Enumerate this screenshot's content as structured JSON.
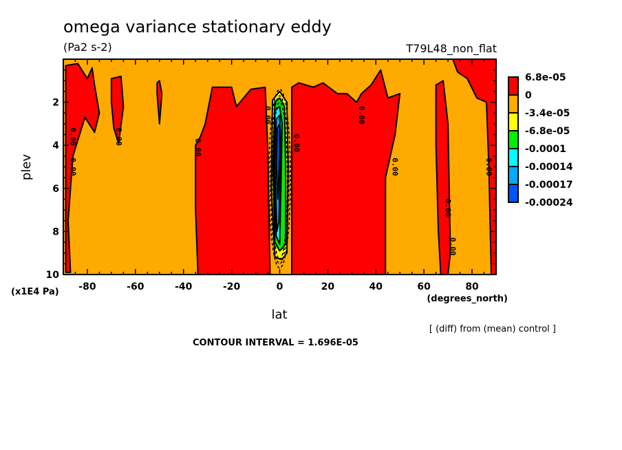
{
  "chart_data": {
    "type": "heatmap",
    "subtype": "filled-contour",
    "title": "omega variance stationary eddy",
    "units": "(Pa2 s-2)",
    "run_label": "T79L48_non_flat",
    "xlabel": "lat",
    "x_units": "(degrees_north)",
    "ylabel": "plev",
    "y_units": "(x1E4 Pa)",
    "xlim": [
      -90,
      90
    ],
    "ylim": [
      10,
      0
    ],
    "x_ticks": [
      -80,
      -60,
      -40,
      -20,
      0,
      20,
      40,
      60,
      80
    ],
    "x_tick_labels": [
      "-80",
      "-60",
      "-40",
      "-20",
      "0",
      "20",
      "40",
      "60",
      "80"
    ],
    "y_ticks": [
      2,
      4,
      6,
      8,
      10
    ],
    "y_tick_labels": [
      "2",
      "4",
      "6",
      "8",
      "10"
    ],
    "contour_interval_text": "CONTOUR INTERVAL = 1.696E-05",
    "contour_interval": 1.696e-05,
    "comparison_note": "[ (diff) from (mean) control ]",
    "contour_label": "0.00",
    "colorbar": {
      "labels": [
        "6.8e-05",
        "0",
        "-3.4e-05",
        "-6.8e-05",
        "-0.0001",
        "-0.00014",
        "-0.00017",
        "-0.00024"
      ],
      "colors": [
        "#ff0000",
        "#ffaa00",
        "#ffff00",
        "#00ee00",
        "#00ffff",
        "#00aaff",
        "#0055ff"
      ]
    },
    "background_color": "#ffaa00",
    "regions": [
      {
        "name": "sh-high-lat-positive",
        "level_color": "#ff0000",
        "points": [
          [
            -89,
            0.3
          ],
          [
            -84,
            0.2
          ],
          [
            -80,
            0.9
          ],
          [
            -78,
            0.4
          ],
          [
            -77,
            1.2
          ],
          [
            -75,
            2.5
          ],
          [
            -77,
            3.4
          ],
          [
            -81,
            2.7
          ],
          [
            -86,
            4.5
          ],
          [
            -88,
            7.5
          ],
          [
            -87,
            9.9
          ],
          [
            -89,
            9.9
          ]
        ]
      },
      {
        "name": "sh-lat-68-positive",
        "level_color": "#ff0000",
        "points": [
          [
            -70,
            0.9
          ],
          [
            -66,
            0.8
          ],
          [
            -65,
            2.2
          ],
          [
            -67,
            3.9
          ],
          [
            -69,
            3.2
          ],
          [
            -70,
            2.0
          ]
        ]
      },
      {
        "name": "sh-lat-50-streak",
        "level_color": "#ff0000",
        "points": [
          [
            -51,
            1.1
          ],
          [
            -50,
            1.0
          ],
          [
            -49,
            1.6
          ],
          [
            -50,
            3.0
          ],
          [
            -51,
            1.6
          ]
        ]
      },
      {
        "name": "sh-subtropics-positive",
        "level_color": "#ff0000",
        "points": [
          [
            -35,
            4.0
          ],
          [
            -33,
            3.6
          ],
          [
            -31,
            3.0
          ],
          [
            -28,
            1.3
          ],
          [
            -20,
            1.3
          ],
          [
            -18,
            2.2
          ],
          [
            -12,
            1.4
          ],
          [
            -6,
            1.3
          ],
          [
            -5,
            4.0
          ],
          [
            -4,
            10
          ],
          [
            -34,
            10
          ],
          [
            -35,
            7
          ]
        ]
      },
      {
        "name": "nh-subtropics-positive",
        "level_color": "#ff0000",
        "points": [
          [
            5,
            1.3
          ],
          [
            8,
            1.1
          ],
          [
            14,
            1.3
          ],
          [
            18,
            1.1
          ],
          [
            24,
            1.6
          ],
          [
            28,
            1.6
          ],
          [
            32,
            2.0
          ],
          [
            34,
            1.6
          ],
          [
            38,
            1.2
          ],
          [
            42,
            0.5
          ],
          [
            45,
            1.8
          ],
          [
            50,
            1.6
          ],
          [
            48,
            3.5
          ],
          [
            44,
            5.5
          ],
          [
            44,
            10
          ],
          [
            5,
            10
          ]
        ]
      },
      {
        "name": "nh-lat-70-positive",
        "level_color": "#ff0000",
        "points": [
          [
            65,
            1.2
          ],
          [
            68,
            1.0
          ],
          [
            70,
            3.0
          ],
          [
            71,
            9.0
          ],
          [
            70,
            10
          ],
          [
            67,
            10
          ],
          [
            66,
            8
          ],
          [
            65,
            4
          ]
        ]
      },
      {
        "name": "nh-high-lat-positive",
        "level_color": "#ff0000",
        "points": [
          [
            72,
            0.0
          ],
          [
            90,
            0.0
          ],
          [
            90,
            10
          ],
          [
            88,
            10
          ],
          [
            87,
            5
          ],
          [
            86,
            2.0
          ],
          [
            82,
            1.8
          ],
          [
            78,
            0.9
          ],
          [
            74,
            0.6
          ]
        ]
      },
      {
        "name": "equatorial-yellow",
        "level_color": "#ffff00",
        "points": [
          [
            -3,
            1.9
          ],
          [
            0,
            1.5
          ],
          [
            3,
            2.0
          ],
          [
            3.5,
            5
          ],
          [
            3,
            9
          ],
          [
            1,
            9.3
          ],
          [
            -2,
            9.2
          ],
          [
            -3.5,
            6
          ]
        ]
      },
      {
        "name": "equatorial-green",
        "level_color": "#00ee00",
        "points": [
          [
            -2,
            2.0
          ],
          [
            0,
            1.8
          ],
          [
            2,
            2.2
          ],
          [
            2.5,
            5
          ],
          [
            2.5,
            8.6
          ],
          [
            0,
            8.9
          ],
          [
            -2,
            8.5
          ],
          [
            -2.8,
            5
          ]
        ]
      },
      {
        "name": "equatorial-cyan",
        "level_color": "#00ffff",
        "points": [
          [
            -2,
            2.4
          ],
          [
            0,
            2.2
          ],
          [
            1,
            3
          ],
          [
            0.5,
            6
          ],
          [
            0,
            8.6
          ],
          [
            -1.5,
            8.2
          ],
          [
            -2.5,
            5
          ]
        ]
      },
      {
        "name": "equatorial-lightblue",
        "level_color": "#00aaff",
        "points": [
          [
            -1.5,
            2.8
          ],
          [
            0,
            2.6
          ],
          [
            0.5,
            4
          ],
          [
            -0.3,
            7.5
          ],
          [
            -1.2,
            8.0
          ],
          [
            -2,
            5
          ]
        ]
      },
      {
        "name": "equatorial-blue",
        "level_color": "#0055ff",
        "points": [
          [
            -1,
            3.2
          ],
          [
            0,
            3.0
          ],
          [
            0,
            4.5
          ],
          [
            -0.8,
            6.5
          ],
          [
            -1.4,
            5
          ]
        ]
      }
    ]
  }
}
